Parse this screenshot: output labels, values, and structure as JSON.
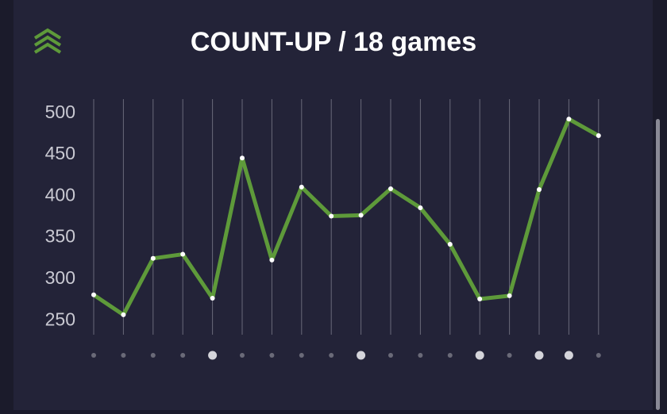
{
  "chart_data": {
    "type": "line",
    "title": "COUNT-UP / 18 games",
    "categories": [
      null,
      null,
      null,
      null,
      null,
      null,
      null,
      null,
      null,
      null,
      null,
      null,
      null,
      null,
      null,
      null,
      null,
      null
    ],
    "values": [
      281,
      257,
      325,
      330,
      277,
      446,
      323,
      411,
      376,
      377,
      409,
      386,
      342,
      276,
      280,
      408,
      493,
      473
    ],
    "highlighted": [
      false,
      false,
      false,
      false,
      true,
      false,
      false,
      false,
      false,
      true,
      false,
      false,
      false,
      true,
      false,
      true,
      true,
      false
    ],
    "color": "#5e9a3a",
    "ylim": [
      233,
      517
    ],
    "yticks": [
      250,
      300,
      350,
      400,
      450,
      500
    ],
    "grid": "x"
  }
}
